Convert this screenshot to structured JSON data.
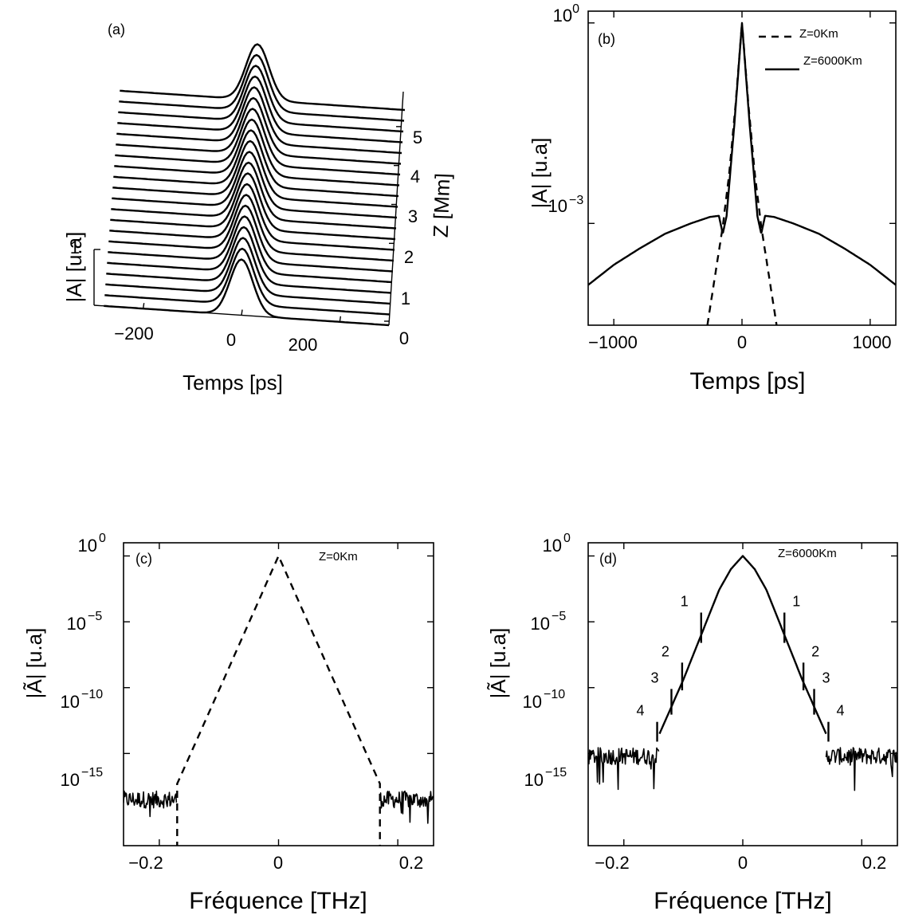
{
  "chart_data": [
    {
      "panel": "(a)",
      "type": "line",
      "xlabel": "Temps [ps]",
      "ylabel": "|A| [u.a]",
      "zlabel": "Z [Mm]",
      "x_ticks": [
        "−200",
        "0",
        "200"
      ],
      "z_ticks": [
        "0",
        "1",
        "2",
        "3",
        "4",
        "5"
      ],
      "y_ticks": [
        "1"
      ],
      "xlim": [
        -300,
        300
      ],
      "zlim": [
        0,
        6
      ],
      "ylim": [
        0,
        1
      ],
      "series": [
        {
          "z": [
            0,
            0.3,
            0.6,
            0.9,
            1.2,
            1.5,
            1.8,
            2.1,
            2.4,
            2.7,
            3.0,
            3.3,
            3.6,
            3.9,
            4.2,
            4.5,
            4.8,
            5.1,
            5.4,
            5.7,
            6.0
          ],
          "pulse_fwhm_ps": 55,
          "amplitude": 1
        }
      ]
    },
    {
      "panel": "(b)",
      "type": "line",
      "xlabel": "Temps [ps]",
      "ylabel": "|A| [u.a]",
      "yscale": "log",
      "xlim": [
        -1200,
        1200
      ],
      "ylim": [
        3e-05,
        1.5
      ],
      "x_ticks": [
        "−1000",
        "0",
        "1000"
      ],
      "y_ticks": [
        {
          "base": "10",
          "exp": "0"
        },
        {
          "base": "10",
          "exp": "−3"
        }
      ],
      "legend_position": "top-right",
      "series": [
        {
          "name": "Z=0Km",
          "style": "dashed",
          "x": [
            -270,
            -200,
            -150,
            -100,
            -50,
            0,
            50,
            100,
            150,
            200,
            270
          ],
          "y": [
            3e-05,
            0.00022,
            0.0009,
            0.0055,
            0.06,
            1,
            0.06,
            0.0055,
            0.0009,
            0.00022,
            3e-05
          ]
        },
        {
          "name": "Z=6000Km",
          "style": "solid",
          "x": [
            -1200,
            -1000,
            -800,
            -600,
            -400,
            -250,
            -180,
            -150,
            -120,
            -60,
            0,
            60,
            120,
            150,
            180,
            250,
            400,
            600,
            800,
            1000,
            1200
          ],
          "y": [
            0.00012,
            0.00024,
            0.00042,
            0.0007,
            0.001,
            0.00125,
            0.0013,
            0.0007,
            0.0013,
            0.03,
            1,
            0.03,
            0.0013,
            0.0007,
            0.0013,
            0.00125,
            0.001,
            0.0007,
            0.00042,
            0.00024,
            0.00012
          ]
        }
      ]
    },
    {
      "panel": "(c)",
      "type": "line",
      "xlabel": "Fréquence [THz]",
      "ylabel": "|Ã| [u.a]",
      "yscale": "log",
      "xlim": [
        -0.26,
        0.26
      ],
      "ylim_exp": [
        -22,
        1
      ],
      "x_ticks": [
        "−0.2",
        "0",
        "0.2"
      ],
      "y_ticks": [
        {
          "base": "10",
          "exp": "0"
        },
        {
          "base": "10",
          "exp": "−5"
        },
        {
          "base": "10",
          "exp": "−10"
        },
        {
          "base": "10",
          "exp": "−15"
        }
      ],
      "annotation": "Z=0Km",
      "series": [
        {
          "name": "Z=0Km",
          "style": "dashed",
          "x": [
            -0.17,
            -0.1,
            -0.05,
            0,
            0.05,
            0.1,
            0.17
          ],
          "y_exp": [
            -17.3,
            -10.2,
            -5.1,
            0,
            -5.1,
            -10.2,
            -17.3
          ]
        },
        {
          "style": "noise",
          "x_range": [
            [
              -0.26,
              -0.17
            ],
            [
              0.17,
              0.26
            ]
          ],
          "y_exp_mean": -18.5
        }
      ]
    },
    {
      "panel": "(d)",
      "type": "line",
      "xlabel": "Fréquence [THz]",
      "ylabel": "|Ã| [u.a]",
      "yscale": "log",
      "xlim": [
        -0.26,
        0.26
      ],
      "ylim_exp": [
        -22,
        1
      ],
      "x_ticks": [
        "−0.2",
        "0",
        "0.2"
      ],
      "y_ticks": [
        {
          "base": "10",
          "exp": "0"
        },
        {
          "base": "10",
          "exp": "−5"
        },
        {
          "base": "10",
          "exp": "−10"
        },
        {
          "base": "10",
          "exp": "−15"
        }
      ],
      "annotation": "Z=6000Km",
      "peak_labels": [
        "1",
        "2",
        "3",
        "4"
      ],
      "peaks": [
        {
          "label": "1",
          "x": 0.07,
          "y_exp": -4.3
        },
        {
          "label": "2",
          "x": 0.102,
          "y_exp": -8.1
        },
        {
          "label": "3",
          "x": 0.12,
          "y_exp": -10.1
        },
        {
          "label": "4",
          "x": 0.144,
          "y_exp": -12.6
        }
      ],
      "series": [
        {
          "name": "Z=6000Km",
          "style": "solid",
          "x": [
            -0.14,
            -0.1,
            -0.07,
            -0.04,
            -0.02,
            0,
            0.02,
            0.04,
            0.07,
            0.1,
            0.14
          ],
          "y_exp": [
            -13.5,
            -9.4,
            -6.0,
            -2.6,
            -1.0,
            0,
            -1.0,
            -2.6,
            -6.0,
            -9.4,
            -13.5
          ]
        },
        {
          "style": "noise",
          "x_range": [
            [
              -0.26,
              -0.14
            ],
            [
              0.14,
              0.26
            ]
          ],
          "y_exp_mean": -15.2
        }
      ]
    }
  ]
}
